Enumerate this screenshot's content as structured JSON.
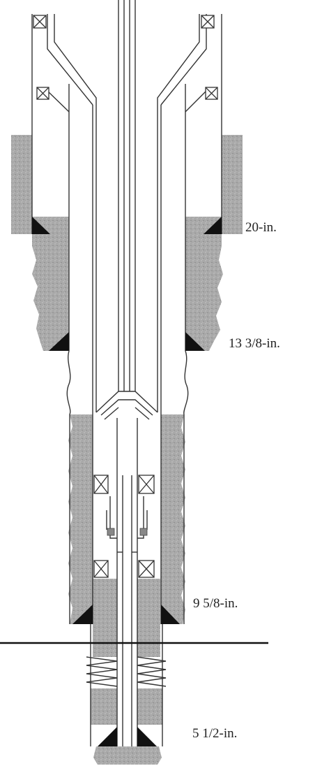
{
  "labels": {
    "casing_20": "20-in.",
    "casing_13_3_8": "13 3/8-in.",
    "casing_9_5_8": "9 5/8-in.",
    "casing_5_1_2": "5 1/2-in."
  },
  "colors": {
    "cement": "#a9a9a9",
    "shoe": "#111111",
    "line": "#333333",
    "background": "#ffffff"
  }
}
